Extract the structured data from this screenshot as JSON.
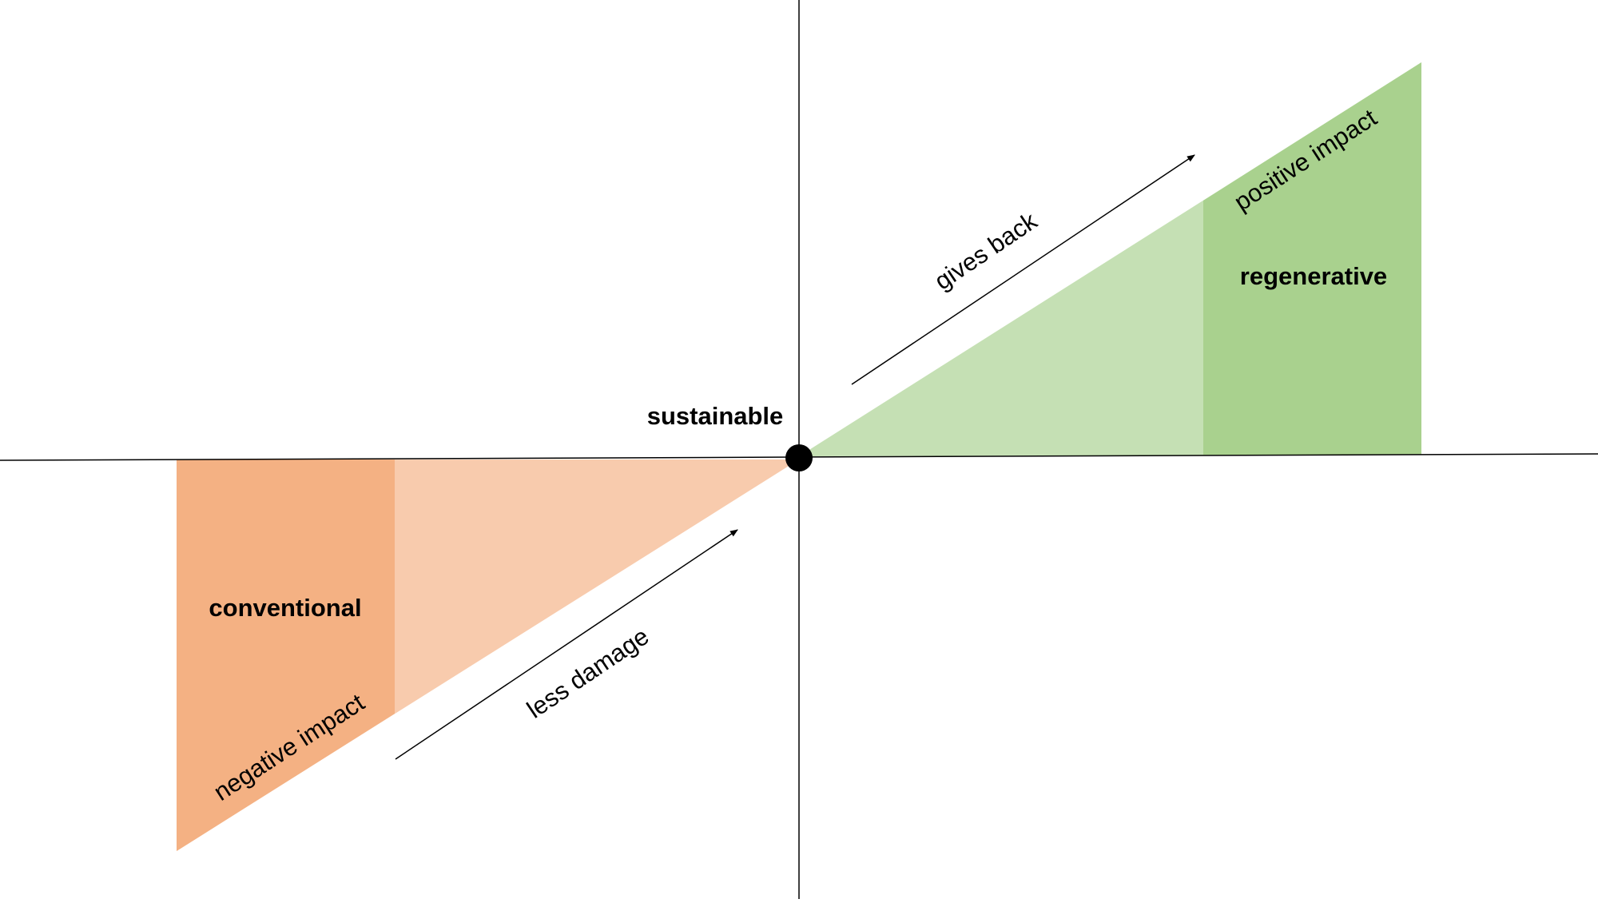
{
  "labels": {
    "center": "sustainable",
    "left_zone": "conventional",
    "left_edge": "negative impact",
    "left_arrow": "less damage",
    "right_arrow": "gives back",
    "right_edge": "positive impact",
    "right_zone": "regenerative"
  }
}
